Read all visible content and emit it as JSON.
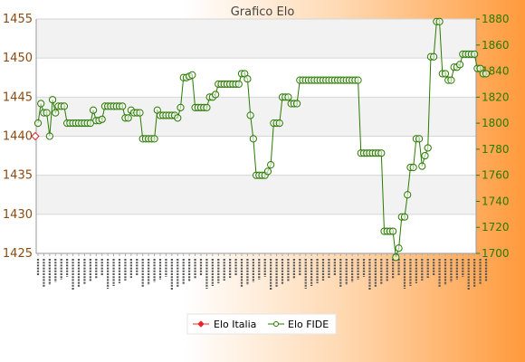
{
  "chart_data": {
    "type": "line",
    "title": "Grafico Elo",
    "xlabel": "",
    "ylabel_left": "",
    "ylabel_right": "",
    "y_left_range": [
      1425,
      1455
    ],
    "y_left_ticks": [
      "1425",
      "1430",
      "1435",
      "1440",
      "1445",
      "1450",
      "1455"
    ],
    "y_right_range": [
      1700,
      1880
    ],
    "y_right_ticks": [
      "1700",
      "1720",
      "1740",
      "1760",
      "1780",
      "1800",
      "1820",
      "1840",
      "1860",
      "1880"
    ],
    "grid": true,
    "legend_position": "bottom",
    "x_tick_label_style": "rotated dates (illegible)",
    "series": [
      {
        "name": "Elo Italia",
        "axis": "left",
        "color": "#e8262d",
        "marker": "diamond",
        "values": [
          1440
        ]
      },
      {
        "name": "Elo FIDE",
        "axis": "right",
        "color": "#2a7a00",
        "marker": "circle",
        "values": [
          1800,
          1815,
          1808,
          1808,
          1790,
          1818,
          1808,
          1813,
          1813,
          1813,
          1800,
          1800,
          1800,
          1800,
          1800,
          1800,
          1800,
          1800,
          1800,
          1810,
          1802,
          1802,
          1803,
          1813,
          1813,
          1813,
          1813,
          1813,
          1813,
          1813,
          1804,
          1804,
          1810,
          1808,
          1808,
          1808,
          1788,
          1788,
          1788,
          1788,
          1788,
          1810,
          1806,
          1806,
          1806,
          1806,
          1806,
          1806,
          1804,
          1812,
          1835,
          1835,
          1836,
          1837,
          1812,
          1812,
          1812,
          1812,
          1812,
          1820,
          1820,
          1822,
          1830,
          1830,
          1830,
          1830,
          1830,
          1830,
          1830,
          1830,
          1838,
          1838,
          1834,
          1806,
          1788,
          1760,
          1760,
          1760,
          1760,
          1763,
          1768,
          1800,
          1800,
          1800,
          1820,
          1820,
          1820,
          1815,
          1815,
          1815,
          1833,
          1833,
          1833,
          1833,
          1833,
          1833,
          1833,
          1833,
          1833,
          1833,
          1833,
          1833,
          1833,
          1833,
          1833,
          1833,
          1833,
          1833,
          1833,
          1833,
          1833,
          1777,
          1777,
          1777,
          1777,
          1777,
          1777,
          1777,
          1777,
          1717,
          1717,
          1717,
          1717,
          1697,
          1704,
          1728,
          1728,
          1745,
          1766,
          1766,
          1788,
          1788,
          1767,
          1775,
          1781,
          1851,
          1851,
          1878,
          1878,
          1838,
          1838,
          1833,
          1833,
          1843,
          1843,
          1845,
          1853,
          1853,
          1853,
          1853,
          1853,
          1842,
          1842,
          1838,
          1838
        ]
      }
    ]
  }
}
